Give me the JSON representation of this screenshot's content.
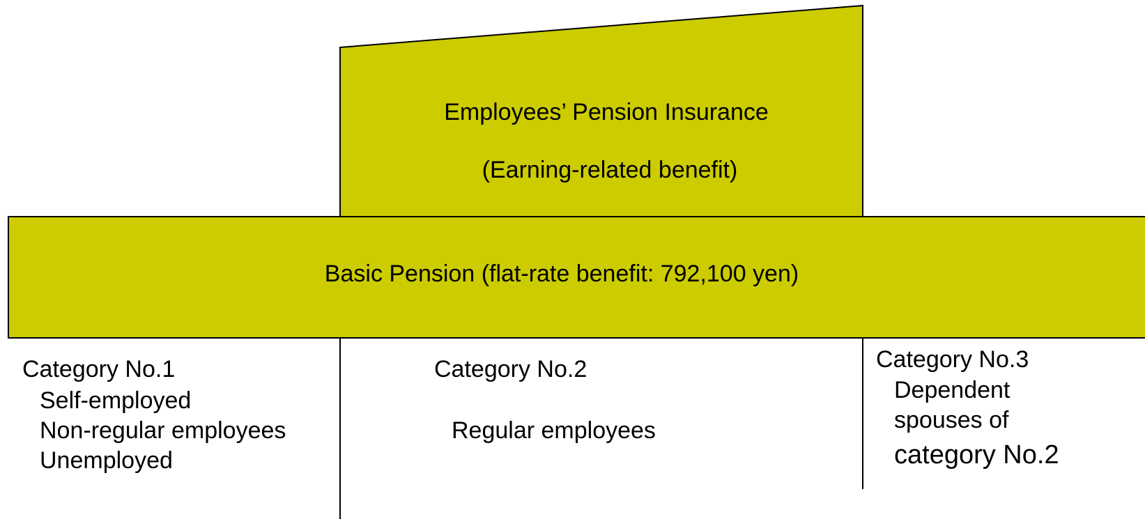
{
  "upper_tier": {
    "title": "Employees’ Pension Insurance",
    "subtitle": "(Earning-related benefit)"
  },
  "basic_tier": {
    "label": "Basic Pension (flat-rate benefit: 792,100 yen)"
  },
  "categories": [
    {
      "title": "Category No.1",
      "members": [
        "Self-employed",
        "Non-regular employees",
        "Unemployed"
      ]
    },
    {
      "title": "Category No.2",
      "members": [
        "Regular employees"
      ]
    },
    {
      "title": "Category No.3",
      "members": [
        "Dependent",
        "spouses of",
        "category No.2"
      ]
    }
  ]
}
